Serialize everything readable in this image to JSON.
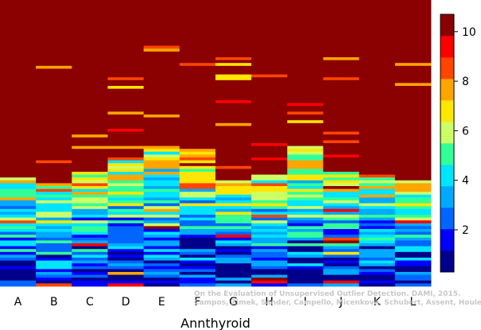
{
  "chart_data": {
    "type": "heatmap",
    "xlabel": "Annthyroid",
    "columns": [
      "A",
      "B",
      "C",
      "D",
      "E",
      "F",
      "G",
      "H",
      "I",
      "J",
      "K",
      "L"
    ],
    "colorbar": {
      "min": 0.3,
      "max": 10.7,
      "ticks": [
        2,
        4,
        6,
        8,
        10
      ],
      "colors": [
        "#00008b",
        "#0000ff",
        "#0066ff",
        "#00aaff",
        "#00e5ff",
        "#33ff99",
        "#ccff66",
        "#ffe600",
        "#ffa500",
        "#ff4500",
        "#ff0000",
        "#8b0000"
      ]
    },
    "rows_per_column": 100,
    "column_profile": {
      "note_values_are_score_levels_per_column": true,
      "red_fraction": [
        0.62,
        0.64,
        0.6,
        0.55,
        0.51,
        0.52,
        0.63,
        0.61,
        0.51,
        0.6,
        0.61,
        0.63
      ],
      "lowest_band_start": [
        0.32,
        0.32,
        0.32,
        0.32,
        0.32,
        0.32,
        0.32,
        0.32,
        0.32,
        0.32,
        0.32,
        0.32
      ]
    },
    "watermark": [
      "On the Evaluation of Unsupervised Outlier Detection. DAMI, 2015.",
      "Campos, Zimek, Sander, Campello, Micenkova, Schubert, Assent, Houle"
    ]
  }
}
